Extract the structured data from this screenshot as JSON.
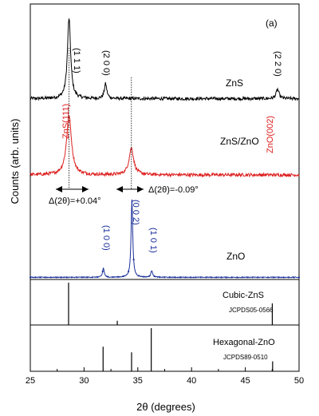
{
  "chart_data": {
    "type": "line",
    "panel_label": "(a)",
    "xlabel": "2θ (degrees)",
    "ylabel": "Counts (arb. units)",
    "xlim": [
      25,
      50
    ],
    "x_ticks": [
      25,
      30,
      35,
      40,
      45,
      50
    ],
    "x_tick_labels": [
      "25",
      "30",
      "35",
      "40",
      "45",
      "50"
    ],
    "series": [
      {
        "name": "ZnS",
        "color": "#000000",
        "baseline": 0.67,
        "noise": 0.006,
        "peaks": [
          {
            "x": 28.6,
            "height": 0.3,
            "width": 0.18,
            "label": "(1 1 1)"
          },
          {
            "x": 32.0,
            "height": 0.055,
            "width": 0.14,
            "label": "(2 0 0)"
          },
          {
            "x": 48.0,
            "height": 0.035,
            "width": 0.16,
            "label": "(2 2 0)"
          }
        ],
        "peak_label_color": "#000000"
      },
      {
        "name": "ZnS/ZnO",
        "color": "#dd2020",
        "baseline": 0.385,
        "noise": 0.006,
        "peaks": [
          {
            "x": 28.6,
            "height": 0.22,
            "width": 0.28,
            "label": "ZnS(111)"
          },
          {
            "x": 34.4,
            "height": 0.1,
            "width": 0.26,
            "label": "ZnO(002)"
          }
        ],
        "peak_label_color": "#dd2020"
      },
      {
        "name": "ZnO",
        "color": "#1a2f9a",
        "baseline": 0.002,
        "noise": 0.0015,
        "peaks": [
          {
            "x": 31.8,
            "height": 0.035,
            "width": 0.09,
            "label": "(1 0 0)"
          },
          {
            "x": 34.45,
            "height": 0.29,
            "width": 0.09,
            "label": "(0 0 2)"
          },
          {
            "x": 36.3,
            "height": 0.025,
            "width": 0.1,
            "label": "(1 0 1)"
          }
        ],
        "peak_label_color": "#1a2f9a"
      }
    ],
    "annotations": {
      "shift_left": "Δ(2θ)=+0.04°",
      "shift_right": "Δ(2θ)=-0.09°"
    },
    "reference_panels": [
      {
        "name": "Cubic-ZnS",
        "card": "JCPDS05-0566",
        "lines": [
          {
            "x": 28.56,
            "intensity": 1.0
          },
          {
            "x": 33.09,
            "intensity": 0.1
          },
          {
            "x": 47.51,
            "intensity": 0.51
          }
        ]
      },
      {
        "name": "Hexagonal-ZnO",
        "card": "JCPDS89-0510",
        "lines": [
          {
            "x": 31.77,
            "intensity": 0.57
          },
          {
            "x": 34.42,
            "intensity": 0.44
          },
          {
            "x": 36.25,
            "intensity": 1.0
          },
          {
            "x": 47.54,
            "intensity": 0.23
          }
        ]
      }
    ]
  }
}
